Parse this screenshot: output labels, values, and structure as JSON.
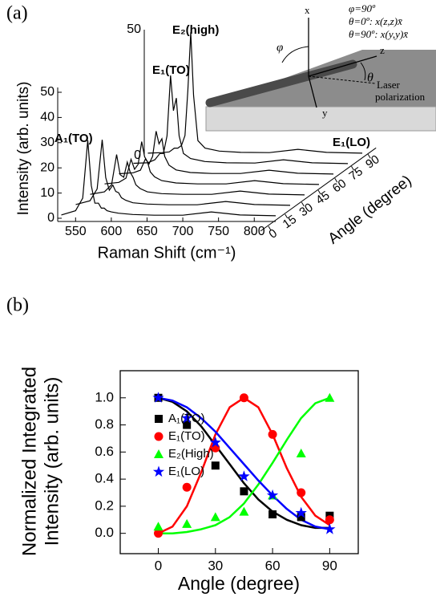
{
  "panels": [
    "(a)",
    "(b)"
  ],
  "diagram": {
    "header": [
      "φ=90º",
      "θ=0º:  x(z,z)x̄",
      "θ=90º:  x(y,y)x̄"
    ],
    "axes": {
      "x": "x",
      "y": "y",
      "z": "z"
    },
    "angles": {
      "phi": "φ",
      "theta": "θ"
    },
    "laser": [
      "Laser",
      "polarization"
    ]
  },
  "chart_data": [
    {
      "type": "waterfall",
      "xlabel": "Raman Shift (cm⁻¹)",
      "ylabel": "Intensity (arb. units)",
      "zlabel": "Angle (degree)",
      "x": [
        530,
        550,
        560,
        567,
        572,
        577,
        582,
        586,
        590,
        594,
        600,
        610,
        630,
        660,
        700,
        740,
        780,
        830
      ],
      "xlim": [
        525,
        830
      ],
      "xticks": [
        550,
        600,
        650,
        700,
        750,
        800
      ],
      "ylim": [
        0,
        50
      ],
      "yticks": [
        0,
        10,
        20,
        30,
        40,
        50
      ],
      "zticks": [
        0,
        15,
        30,
        45,
        60,
        75,
        90
      ],
      "color": "#000000",
      "series": [
        {
          "values": [
            1.3,
            3,
            8,
            31,
            13,
            6,
            6,
            4,
            4,
            3,
            2.5,
            2,
            1.5,
            1.2,
            1.2,
            2.5,
            1.3,
            1
          ]
        },
        {
          "values": [
            1.3,
            2.8,
            7.5,
            27,
            12,
            7,
            9,
            6.5,
            6,
            4,
            3,
            2,
            1.5,
            1.2,
            1.2,
            2.5,
            1.3,
            1
          ]
        },
        {
          "values": [
            1.2,
            2.2,
            5,
            17,
            9,
            8,
            14,
            10,
            8,
            5,
            3.5,
            2.2,
            1.5,
            1.2,
            1.2,
            2.5,
            1.3,
            1
          ]
        },
        {
          "values": [
            1.2,
            1.8,
            3.5,
            11,
            7,
            9,
            18,
            12,
            10,
            6,
            4,
            2.5,
            1.6,
            1.2,
            1.2,
            2.5,
            1.3,
            1
          ]
        },
        {
          "values": [
            1.1,
            1.5,
            2.5,
            7,
            5,
            8,
            18,
            13,
            15,
            8,
            4.5,
            2.6,
            1.6,
            1.2,
            1.2,
            2.5,
            1.3,
            1
          ]
        },
        {
          "values": [
            1.1,
            1.3,
            2.5,
            5,
            5,
            12,
            36,
            22,
            27,
            12,
            5,
            3,
            1.8,
            1.3,
            1.2,
            2.5,
            1.3,
            1
          ]
        },
        {
          "values": [
            1,
            1.2,
            1.5,
            3,
            3,
            4,
            8,
            26,
            49,
            24,
            6,
            3,
            1.8,
            1.3,
            1.2,
            2.5,
            1.3,
            1
          ]
        }
      ],
      "annotations": [
        "A₁(TO)",
        "E₁(TO)",
        "E₂(high)",
        "E₁(LO)"
      ]
    },
    {
      "type": "scatter",
      "xlabel": "Angle (degree)",
      "ylabel": [
        "Normalized Integrated",
        "Intensity (arb. units)"
      ],
      "x": [
        0,
        15,
        30,
        45,
        60,
        75,
        90
      ],
      "xlim": [
        -20,
        105
      ],
      "xticks": [
        0,
        30,
        60,
        90
      ],
      "ylim": [
        -0.15,
        1.2
      ],
      "yticks": [
        {
          "value": 0,
          "label": "0.0"
        },
        0.2,
        0.4,
        0.6,
        0.8,
        {
          "value": 1,
          "label": "1.0"
        }
      ],
      "legend": "left",
      "series": [
        {
          "name": "A₁(TO)",
          "color": "#000000",
          "marker": "square",
          "values": [
            1.0,
            0.8,
            0.5,
            0.31,
            0.14,
            0.12,
            0.13
          ]
        },
        {
          "name": "E₁(TO)",
          "color": "#ff0000",
          "marker": "circle",
          "values": [
            0.0,
            0.34,
            0.63,
            1.0,
            0.73,
            0.3,
            0.1
          ]
        },
        {
          "name": "E₂(High)",
          "color": "#00ff00",
          "marker": "triangle",
          "values": [
            0.05,
            0.07,
            0.12,
            0.16,
            0.28,
            0.59,
            1.0
          ]
        },
        {
          "name": "E₁(LO)",
          "color": "#0000ff",
          "marker": "star",
          "values": [
            1.0,
            0.85,
            0.67,
            0.42,
            0.28,
            0.15,
            0.03
          ]
        }
      ],
      "fit_x": [
        0,
        7.5,
        15,
        22.5,
        30,
        37.5,
        45,
        52.5,
        60,
        67.5,
        75,
        82.5,
        90
      ],
      "fits": [
        {
          "color": "#000000",
          "values": [
            1.0,
            0.97,
            0.9,
            0.79,
            0.65,
            0.51,
            0.37,
            0.25,
            0.16,
            0.1,
            0.06,
            0.04,
            0.04
          ]
        },
        {
          "color": "#ff0000",
          "values": [
            0.0,
            0.05,
            0.2,
            0.45,
            0.73,
            0.93,
            1.0,
            0.93,
            0.73,
            0.48,
            0.27,
            0.13,
            0.06
          ]
        },
        {
          "color": "#00ff00",
          "values": [
            0.0,
            0.0,
            0.01,
            0.03,
            0.06,
            0.12,
            0.22,
            0.36,
            0.52,
            0.69,
            0.85,
            0.96,
            1.0
          ]
        },
        {
          "color": "#0000ff",
          "values": [
            1.0,
            0.98,
            0.93,
            0.85,
            0.75,
            0.63,
            0.51,
            0.39,
            0.28,
            0.18,
            0.1,
            0.05,
            0.03
          ]
        }
      ]
    }
  ]
}
